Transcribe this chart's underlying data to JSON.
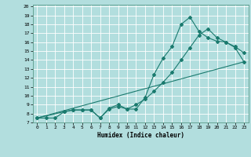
{
  "xlabel": "Humidex (Indice chaleur)",
  "bg_color": "#b2dede",
  "line_color": "#1a7a6e",
  "grid_color": "#ffffff",
  "xlim": [
    -0.5,
    23.5
  ],
  "ylim": [
    7.0,
    20.2
  ],
  "yticks": [
    7,
    8,
    9,
    10,
    11,
    12,
    13,
    14,
    15,
    16,
    17,
    18,
    19,
    20
  ],
  "xticks": [
    0,
    1,
    2,
    3,
    4,
    5,
    6,
    7,
    8,
    9,
    10,
    11,
    12,
    13,
    14,
    15,
    16,
    17,
    18,
    19,
    20,
    21,
    22,
    23
  ],
  "line1_x": [
    0,
    1,
    2,
    3,
    4,
    5,
    6,
    7,
    8,
    9,
    10,
    11,
    12,
    13,
    14,
    15,
    16,
    17,
    18,
    19,
    20,
    21,
    22,
    23
  ],
  "line1_y": [
    7.5,
    7.5,
    7.5,
    8.2,
    8.4,
    8.4,
    8.4,
    7.5,
    8.6,
    9.0,
    8.5,
    8.5,
    9.8,
    12.4,
    14.2,
    15.5,
    18.0,
    18.8,
    17.2,
    16.5,
    16.1,
    16.0,
    15.4,
    13.8
  ],
  "line2_x": [
    0,
    3,
    4,
    5,
    6,
    7,
    8,
    9,
    10,
    11,
    12,
    13,
    14,
    15,
    16,
    17,
    18,
    19,
    20,
    21,
    22,
    23
  ],
  "line2_y": [
    7.5,
    8.2,
    8.4,
    8.4,
    8.4,
    7.5,
    8.5,
    8.8,
    8.5,
    9.0,
    9.6,
    10.5,
    11.5,
    12.6,
    14.0,
    15.4,
    16.8,
    17.5,
    16.5,
    16.0,
    15.5,
    14.8
  ],
  "line3_x": [
    0,
    23
  ],
  "line3_y": [
    7.5,
    13.8
  ]
}
